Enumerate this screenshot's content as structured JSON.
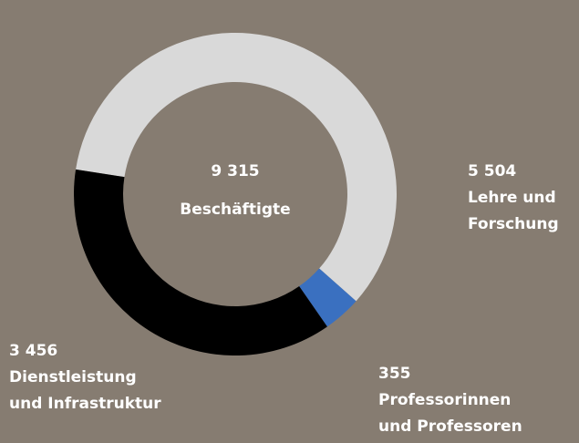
{
  "chart_data": {
    "type": "donut",
    "total": {
      "value": 9315,
      "label": "9 315"
    },
    "total_caption": "Beschäftigte",
    "categories": [
      [
        "Lehre und",
        "Forschung"
      ],
      [
        "Professorinnen",
        "und Professoren"
      ],
      [
        "Dienstleistung",
        "und Infrastruktur"
      ]
    ],
    "values": [
      5504,
      355,
      3456
    ],
    "value_labels": [
      "5 504",
      "355",
      "3 456"
    ],
    "colors": [
      "#d9d9d9",
      "#3a70c0",
      "#000000"
    ]
  }
}
